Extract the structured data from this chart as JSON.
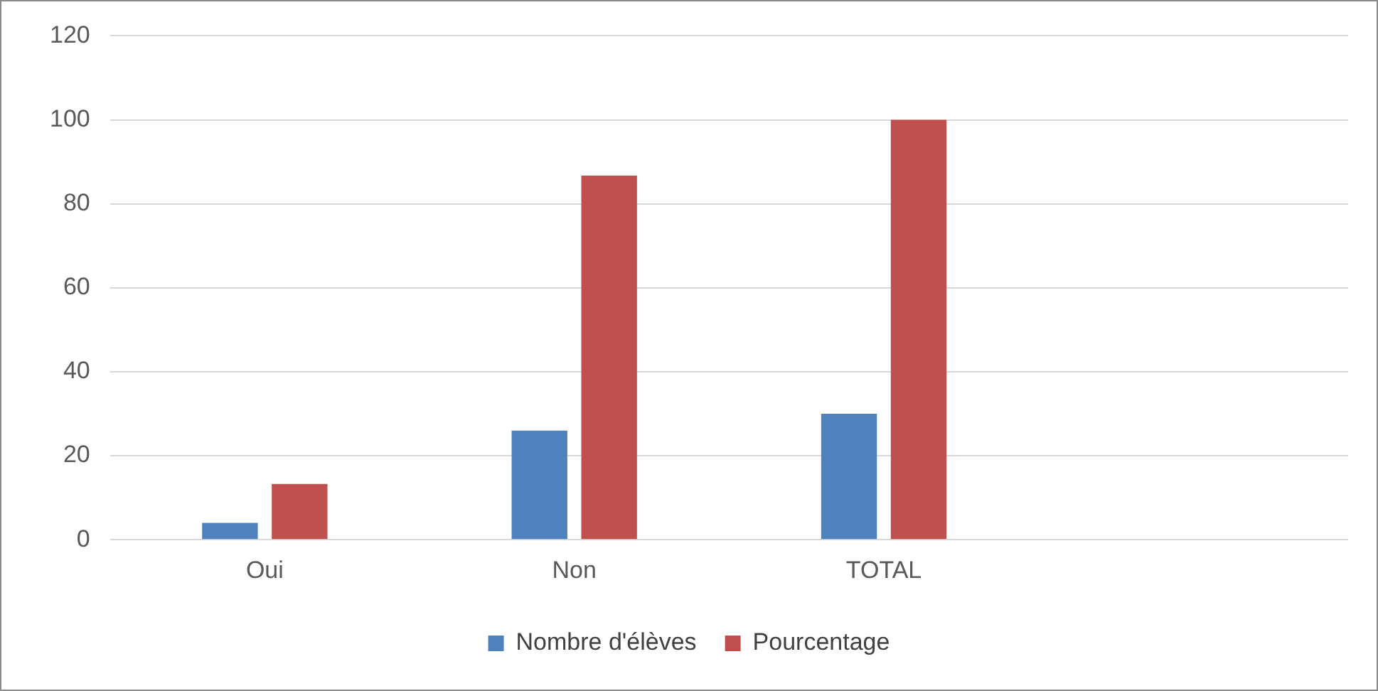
{
  "chart_data": {
    "type": "bar",
    "categories": [
      "Oui",
      "Non",
      "TOTAL",
      null
    ],
    "series": [
      {
        "name": "Nombre d'élèves",
        "color": "#4f81bd",
        "values": [
          4,
          26,
          30,
          null
        ]
      },
      {
        "name": "Pourcentage",
        "color": "#c0504d",
        "values": [
          13.3,
          86.7,
          100,
          null
        ]
      }
    ],
    "ylim": [
      0,
      120
    ],
    "yticks": [
      0,
      20,
      40,
      60,
      80,
      100,
      120
    ],
    "grid": "y",
    "legend": "bottom"
  }
}
